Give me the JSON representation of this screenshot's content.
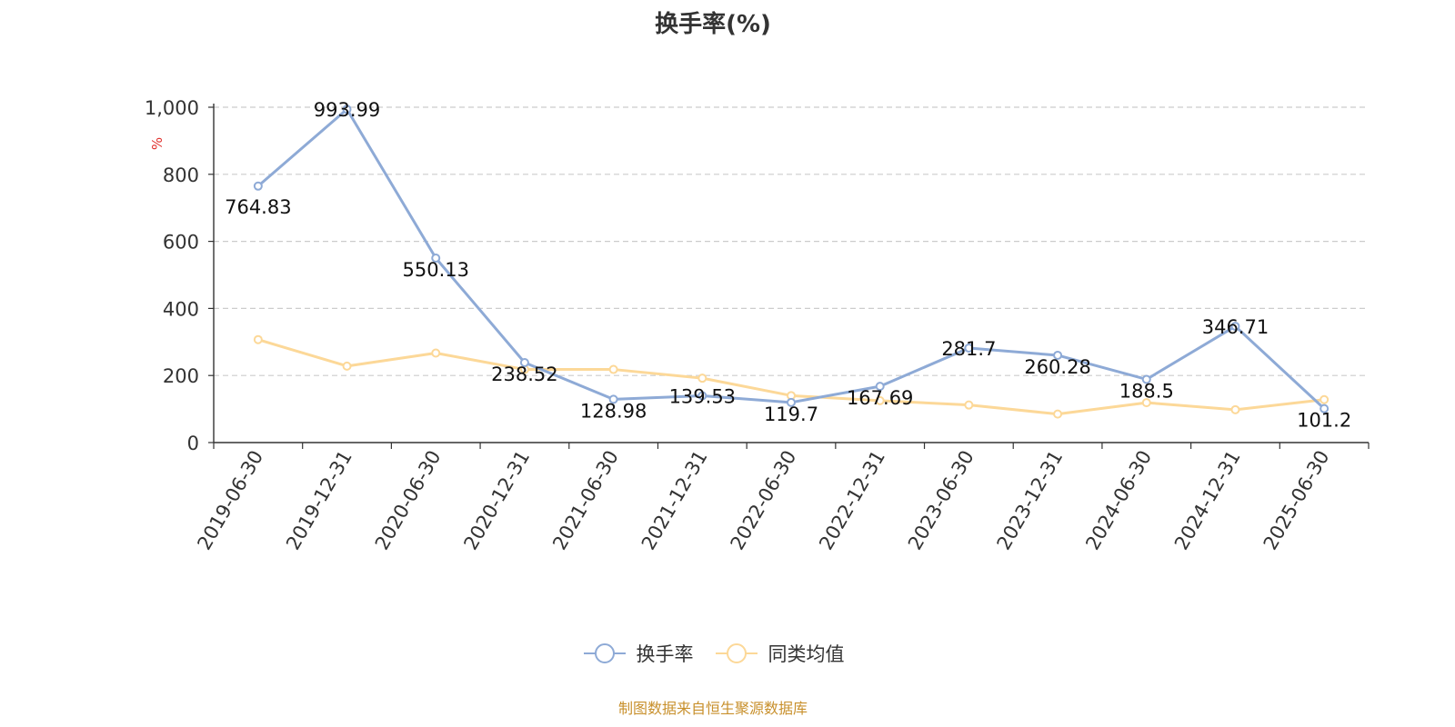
{
  "chart_data": {
    "type": "line",
    "title": "换手率(%)",
    "ylabel": "%",
    "xlabel": "",
    "ylim": [
      0,
      1000
    ],
    "yticks": [
      0,
      200,
      400,
      600,
      800,
      1000
    ],
    "ytick_labels": [
      "0",
      "200",
      "400",
      "600",
      "800",
      "1,000"
    ],
    "grid": true,
    "legend_position": "bottom",
    "categories": [
      "2019-06-30",
      "2019-12-31",
      "2020-06-30",
      "2020-12-31",
      "2021-06-30",
      "2021-12-31",
      "2022-06-30",
      "2022-12-31",
      "2023-06-30",
      "2023-12-31",
      "2024-06-30",
      "2024-12-31",
      "2025-06-30"
    ],
    "series": [
      {
        "name": "换手率",
        "color": "#8eaad6",
        "values": [
          764.83,
          993.99,
          550.13,
          238.52,
          128.98,
          139.53,
          119.7,
          167.69,
          281.7,
          260.28,
          188.5,
          346.71,
          101.2
        ],
        "labels": [
          "764.83",
          "993.99",
          "550.13",
          "238.52",
          "128.98",
          "139.53",
          "119.7",
          "167.69",
          "281.7",
          "260.28",
          "188.5",
          "346.71",
          "101.2"
        ]
      },
      {
        "name": "同类均值",
        "color": "#fcd898",
        "values": [
          307,
          228,
          267,
          218,
          218,
          192,
          140,
          125,
          112,
          85,
          119,
          98,
          128
        ]
      }
    ],
    "source": "制图数据来自恒生聚源数据库"
  }
}
